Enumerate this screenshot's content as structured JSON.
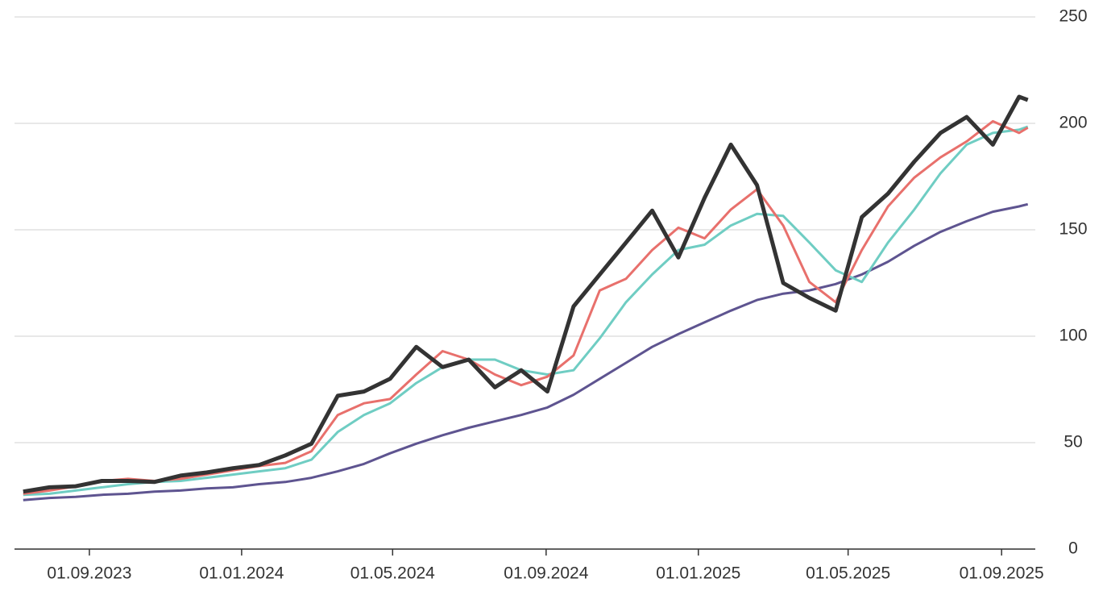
{
  "chart_data": {
    "type": "line",
    "x": [
      "10.07.2023",
      "31.07.2023",
      "21.08.2023",
      "11.09.2023",
      "02.10.2023",
      "23.10.2023",
      "13.11.2023",
      "04.12.2023",
      "25.12.2023",
      "15.01.2024",
      "05.02.2024",
      "26.02.2024",
      "18.03.2024",
      "08.04.2024",
      "29.04.2024",
      "20.05.2024",
      "10.06.2024",
      "01.07.2024",
      "22.07.2024",
      "12.08.2024",
      "02.09.2024",
      "23.09.2024",
      "14.10.2024",
      "04.11.2024",
      "25.11.2024",
      "16.12.2024",
      "06.01.2025",
      "27.01.2025",
      "17.02.2025",
      "10.03.2025",
      "31.03.2025",
      "21.04.2025",
      "12.05.2025",
      "02.06.2025",
      "23.06.2025",
      "14.07.2025",
      "04.08.2025",
      "25.08.2025",
      "15.09.2025",
      "22.09.2025"
    ],
    "series": [
      {
        "color": "#5e5490",
        "width": 3,
        "values": [
          23,
          24,
          24.5,
          25.5,
          26,
          27,
          27.5,
          28.5,
          29,
          30.5,
          31.5,
          33.5,
          36.5,
          40,
          45,
          49.5,
          53.5,
          57,
          60,
          63,
          66.5,
          72.5,
          80,
          87.5,
          95,
          101,
          106.5,
          112,
          117,
          120,
          121.5,
          124.5,
          129,
          135,
          142.5,
          149,
          154,
          158.5,
          161,
          162
        ]
      },
      {
        "color": "#6fcdc3",
        "width": 3,
        "values": [
          25.5,
          26,
          27.5,
          29,
          30.5,
          31.5,
          32,
          33.5,
          35,
          36.5,
          38,
          42,
          55,
          63,
          68.5,
          78,
          85.5,
          89,
          89,
          84,
          82,
          84,
          99,
          116,
          129,
          140.5,
          143,
          152,
          157.5,
          156.5,
          144,
          131,
          125.5,
          144,
          159.5,
          176.5,
          190,
          195.5,
          197,
          198.5
        ]
      },
      {
        "color": "#e8706c",
        "width": 3,
        "values": [
          26,
          27.5,
          29.5,
          32,
          33,
          32,
          33,
          35,
          37,
          39,
          40.5,
          46,
          63,
          68.5,
          70.5,
          82,
          93,
          89,
          82,
          77,
          81,
          91,
          121.5,
          127,
          140.5,
          151,
          146,
          159.5,
          169,
          152,
          125.5,
          116,
          140.5,
          161,
          174.5,
          184,
          191.5,
          201,
          195.5,
          198
        ]
      },
      {
        "color": "#333333",
        "width": 5,
        "values": [
          27,
          29,
          29.5,
          32,
          32,
          31.5,
          34.5,
          36,
          38,
          39.5,
          44,
          49.5,
          72,
          74,
          80,
          95,
          85.5,
          89,
          76,
          84,
          74,
          114,
          129,
          144,
          159,
          137,
          165,
          190,
          171,
          125,
          118,
          112,
          156,
          167,
          182,
          195.5,
          203,
          190,
          212.5,
          211
        ]
      }
    ],
    "xlim": [
      "03.07.2023",
      "28.09.2025"
    ],
    "xticks": [
      "01.09.2023",
      "01.01.2024",
      "01.05.2024",
      "01.09.2024",
      "01.01.2025",
      "01.05.2025",
      "01.09.2025"
    ],
    "ylim": [
      0,
      250
    ],
    "yticks": [
      0,
      50,
      100,
      150,
      200,
      250
    ],
    "grid": true
  }
}
